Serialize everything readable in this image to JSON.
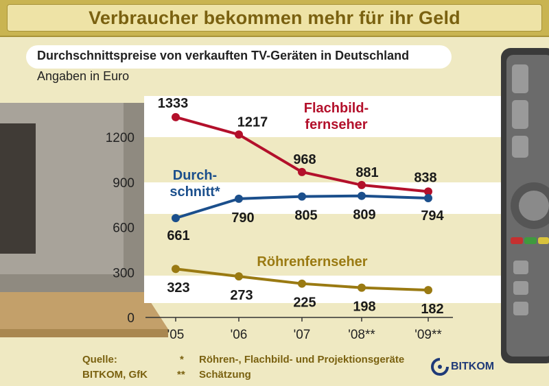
{
  "header": {
    "title": "Verbraucher bekommen mehr für ihr Geld",
    "subtitle": "Durchschnittspreise von verkauften TV-Geräten in Deutschland",
    "unit": "Angaben in Euro"
  },
  "chart_data": {
    "type": "line",
    "categories": [
      "'05",
      "'06",
      "'07",
      "'08**",
      "'09**"
    ],
    "yticks": [
      "0",
      "300",
      "600",
      "900",
      "1200"
    ],
    "ylim": [
      0,
      1400
    ],
    "series": [
      {
        "name": "Flachbildfernseher",
        "label_lines": [
          "Flachbild-",
          "fernseher"
        ],
        "color": "#b3102b",
        "values": [
          1333,
          1217,
          968,
          881,
          838
        ],
        "value_labels": [
          "1333",
          "1217",
          "968",
          "881",
          "838"
        ]
      },
      {
        "name": "Durchschnitt*",
        "label_lines": [
          "Durch-",
          "schnitt*"
        ],
        "color": "#1b4f8c",
        "values": [
          661,
          790,
          805,
          809,
          794
        ],
        "value_labels": [
          "661",
          "790",
          "805",
          "809",
          "794"
        ]
      },
      {
        "name": "Röhrenfernseher",
        "label_lines": [
          "Röhrenfernseher"
        ],
        "color": "#9a7a12",
        "values": [
          323,
          273,
          225,
          198,
          182
        ],
        "value_labels": [
          "323",
          "273",
          "225",
          "198",
          "182"
        ]
      }
    ]
  },
  "footer": {
    "source_label": "Quelle:",
    "source_value": "BITKOM, GfK",
    "note1_mark": "*",
    "note1_text": "Röhren-, Flachbild- und Projektionsgeräte",
    "note2_mark": "**",
    "note2_text": "Schätzung",
    "logo_text": "BITKOM"
  },
  "colors": {
    "flach": "#b3102b",
    "durch": "#1b4f8c",
    "roehre": "#9a7a12",
    "band": "#ffffff"
  }
}
